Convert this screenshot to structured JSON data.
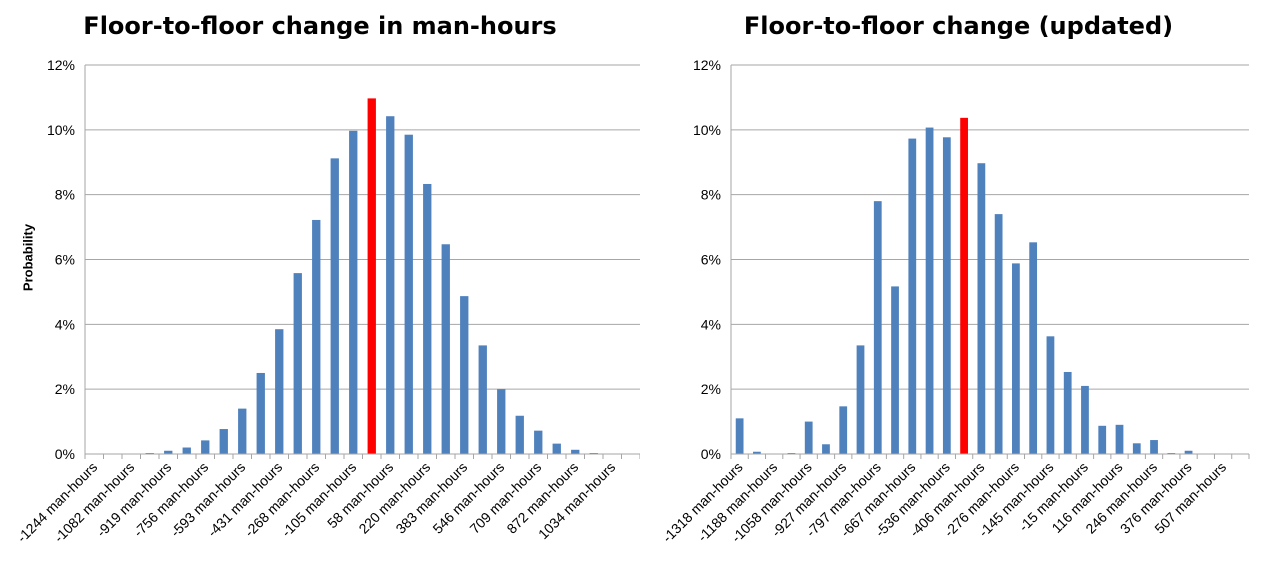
{
  "charts": [
    {
      "title": "Floor-to-floor change in man-hours",
      "ylabel": "Probability"
    },
    {
      "title": "Floor-to-floor change (updated)",
      "ylabel": ""
    }
  ],
  "colors": {
    "bar": "#4f81bd",
    "highlight": "#ff0000",
    "grid": "#a6a6a6",
    "axis": "#a6a6a6"
  },
  "chart_data": [
    {
      "type": "bar",
      "title": "Floor-to-floor change in man-hours",
      "xlabel": "",
      "ylabel": "Probability",
      "ylim": [
        0,
        12
      ],
      "y_ticks": [
        "0%",
        "2%",
        "4%",
        "6%",
        "8%",
        "10%",
        "12%"
      ],
      "x_tick_labels": [
        "-1244 man-hours",
        "-1082 man-hours",
        "-919 man-hours",
        "-756 man-hours",
        "-593 man-hours",
        "-431 man-hours",
        "-268 man-hours",
        "-105 man-hours",
        "58 man-hours",
        "220 man-hours",
        "383 man-hours",
        "546 man-hours",
        "709 man-hours",
        "872 man-hours",
        "1034 man-hours"
      ],
      "values": [
        0,
        0,
        0,
        0.03,
        0.1,
        0.2,
        0.42,
        0.77,
        1.4,
        2.5,
        3.85,
        5.58,
        7.22,
        9.12,
        9.97,
        10.97,
        10.42,
        9.85,
        8.33,
        6.47,
        4.87,
        3.35,
        2.0,
        1.18,
        0.72,
        0.32,
        0.13,
        0.03,
        0,
        0
      ],
      "highlight_index": 15,
      "grid": true,
      "legend": "none"
    },
    {
      "type": "bar",
      "title": "Floor-to-floor change (updated)",
      "xlabel": "",
      "ylabel": "",
      "ylim": [
        0,
        12
      ],
      "y_ticks": [
        "0%",
        "2%",
        "4%",
        "6%",
        "8%",
        "10%",
        "12%"
      ],
      "x_tick_labels": [
        "-1318 man-hours",
        "-1188 man-hours",
        "-1058 man-hours",
        "-927 man-hours",
        "-797 man-hours",
        "-667 man-hours",
        "-536 man-hours",
        "-406 man-hours",
        "-276 man-hours",
        "-145 man-hours",
        "-15 man-hours",
        "116 man-hours",
        "246 man-hours",
        "376 man-hours",
        "507 man-hours"
      ],
      "values": [
        1.1,
        0.07,
        0,
        0.03,
        1.0,
        0.3,
        1.47,
        3.35,
        7.8,
        5.17,
        9.73,
        10.07,
        9.77,
        10.37,
        8.97,
        7.4,
        5.88,
        6.53,
        3.63,
        2.53,
        2.1,
        0.87,
        0.9,
        0.33,
        0.43,
        0.03,
        0.1,
        0,
        0,
        0
      ],
      "highlight_index": 13,
      "grid": true,
      "legend": "none"
    }
  ]
}
